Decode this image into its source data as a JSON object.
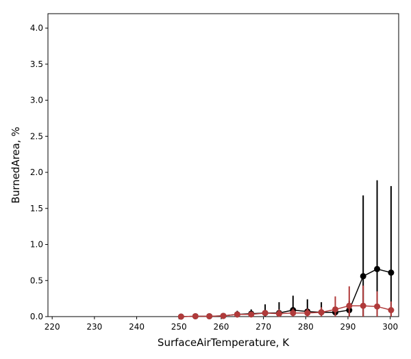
{
  "chart_data": {
    "type": "line",
    "title": "",
    "xlabel": "SurfaceAirTemperature,  K",
    "ylabel": "BurnedArea,  %",
    "xlim": [
      219,
      302
    ],
    "ylim": [
      0,
      4.2
    ],
    "xticks": [
      220,
      230,
      240,
      250,
      260,
      270,
      280,
      290,
      300
    ],
    "xtick_labels": [
      "220",
      "230",
      "240",
      "250",
      "260",
      "270",
      "280",
      "290",
      "300"
    ],
    "yticks": [
      0.0,
      0.5,
      1.0,
      1.5,
      2.0,
      2.5,
      3.0,
      3.5,
      4.0
    ],
    "ytick_labels": [
      "0.0",
      "0.5",
      "1.0",
      "1.5",
      "2.0",
      "2.5",
      "3.0",
      "3.5",
      "4.0"
    ],
    "grid": false,
    "legend": "none",
    "series": [
      {
        "color": "#000000",
        "x": [
          250.5,
          253.9,
          257.2,
          260.5,
          263.8,
          267.1,
          270.4,
          273.7,
          277.0,
          280.4,
          283.7,
          287.0,
          290.3,
          293.6,
          296.9,
          300.2
        ],
        "y": [
          0.0,
          0.005,
          0.005,
          0.01,
          0.03,
          0.04,
          0.05,
          0.05,
          0.09,
          0.07,
          0.06,
          0.06,
          0.09,
          0.56,
          0.66,
          0.61
        ],
        "yerr": [
          0.005,
          0.01,
          0.01,
          0.02,
          0.05,
          0.06,
          0.12,
          0.15,
          0.2,
          0.17,
          0.14,
          0.06,
          0.13,
          1.12,
          1.23,
          1.2
        ]
      },
      {
        "color": "#b03a3a",
        "x": [
          250.5,
          253.9,
          257.2,
          260.5,
          263.8,
          267.1,
          270.4,
          273.7,
          277.0,
          280.4,
          283.7,
          287.0,
          290.3,
          293.6,
          296.9,
          300.2
        ],
        "y": [
          0.0,
          0.005,
          0.005,
          0.01,
          0.03,
          0.03,
          0.05,
          0.04,
          0.05,
          0.05,
          0.06,
          0.1,
          0.15,
          0.15,
          0.14,
          0.09
        ],
        "yerr": [
          0.005,
          0.01,
          0.01,
          0.01,
          0.02,
          0.02,
          0.04,
          0.06,
          0.06,
          0.06,
          0.07,
          0.18,
          0.27,
          0.28,
          0.21,
          0.12
        ]
      }
    ]
  }
}
